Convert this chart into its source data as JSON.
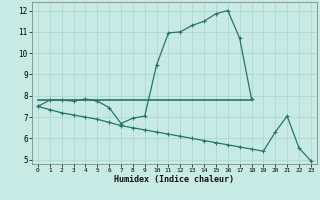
{
  "xlabel": "Humidex (Indice chaleur)",
  "xlim": [
    -0.5,
    23.5
  ],
  "ylim": [
    4.8,
    12.4
  ],
  "xticks": [
    0,
    1,
    2,
    3,
    4,
    5,
    6,
    7,
    8,
    9,
    10,
    11,
    12,
    13,
    14,
    15,
    16,
    17,
    18,
    19,
    20,
    21,
    22,
    23
  ],
  "yticks": [
    5,
    6,
    7,
    8,
    9,
    10,
    11,
    12
  ],
  "background_color": "#c8eae4",
  "grid_color": "#a8d5cc",
  "line_color": "#27756a",
  "curve_x": [
    0,
    1,
    2,
    3,
    4,
    5,
    6,
    7,
    8,
    9,
    10,
    11,
    12,
    13,
    14,
    15,
    16,
    17,
    18
  ],
  "curve_y": [
    7.5,
    7.8,
    7.8,
    7.75,
    7.85,
    7.75,
    7.45,
    6.7,
    6.95,
    7.05,
    9.45,
    10.95,
    11.0,
    11.3,
    11.5,
    11.85,
    12.0,
    10.7,
    7.85
  ],
  "hline_x": [
    0,
    18
  ],
  "hline_y": [
    7.8,
    7.8
  ],
  "decline_x": [
    0,
    1,
    2,
    3,
    4,
    5,
    6,
    7,
    8,
    9,
    10,
    11,
    12,
    13,
    14,
    15,
    16,
    17,
    18,
    19,
    20,
    21,
    22,
    23
  ],
  "decline_y": [
    7.5,
    7.35,
    7.2,
    7.1,
    7.0,
    6.9,
    6.75,
    6.6,
    6.5,
    6.4,
    6.3,
    6.2,
    6.1,
    6.0,
    5.9,
    5.8,
    5.7,
    5.6,
    5.5,
    5.4,
    6.3,
    7.05,
    5.55,
    4.95
  ]
}
